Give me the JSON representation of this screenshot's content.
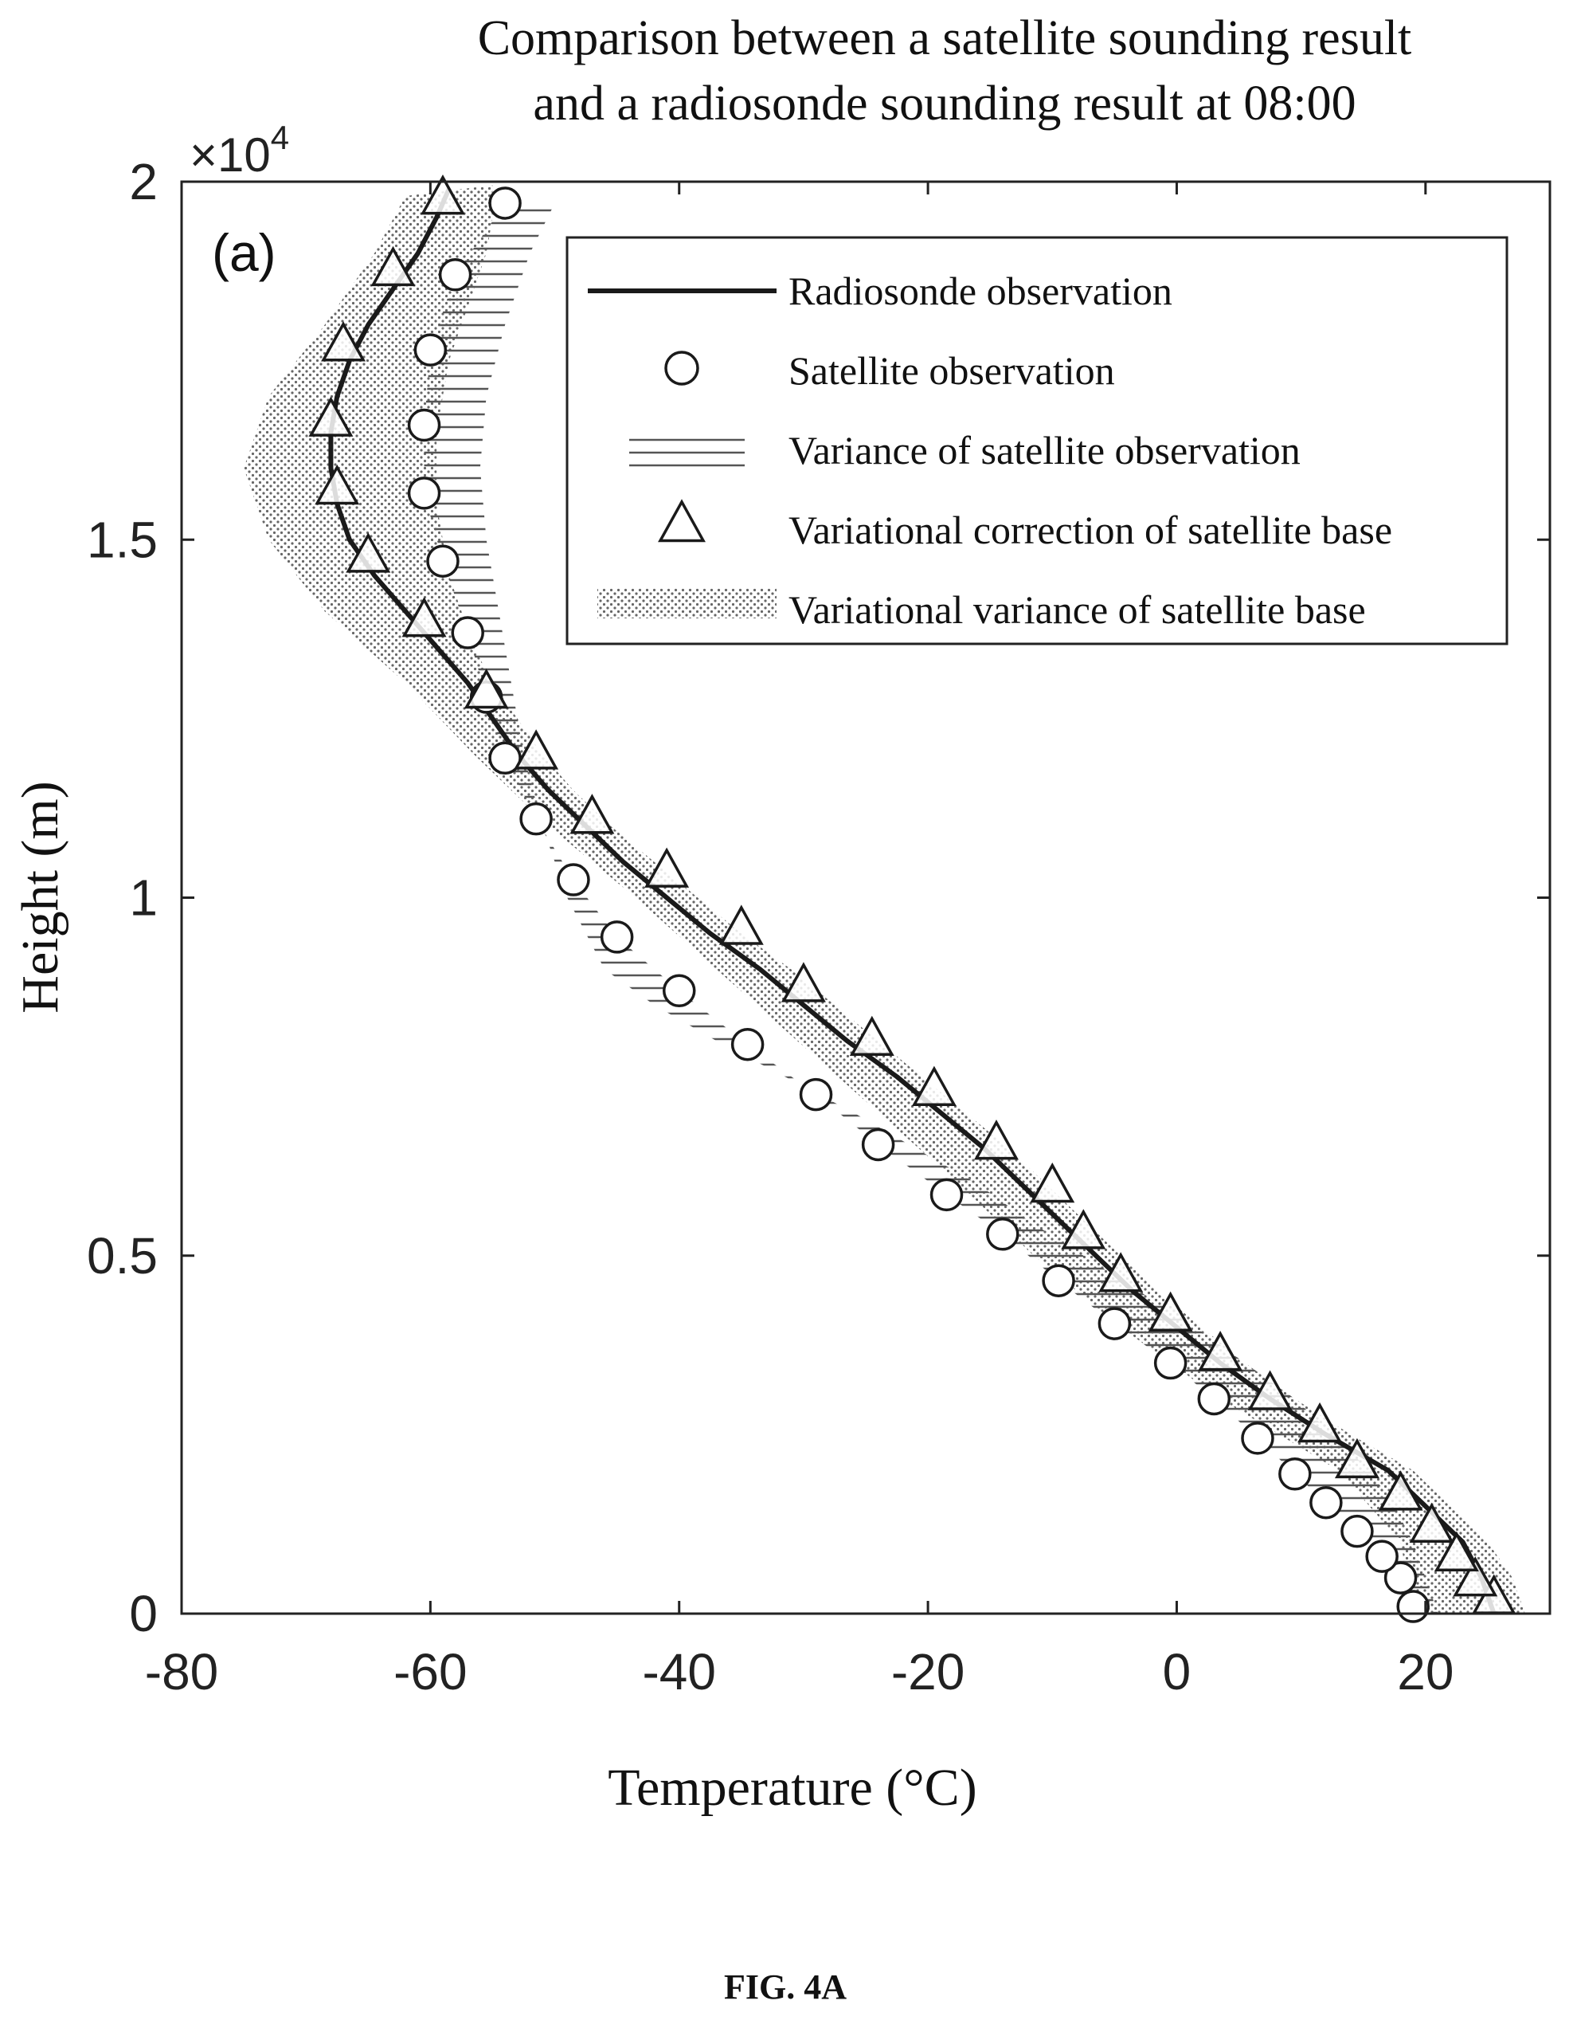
{
  "figure_label": "FIG. 4A",
  "chart_data": {
    "type": "line",
    "title_lines": [
      "Comparison between a satellite sounding result",
      "and a radiosonde sounding result at 08:00"
    ],
    "panel_label": "(a)",
    "xlabel": "Temperature (°C)",
    "ylabel": "Height (m)",
    "y_multiplier": "×10",
    "y_multiplier_exp": "4",
    "xlim": [
      -80,
      30
    ],
    "ylim": [
      0,
      20000
    ],
    "xticks": [
      -80,
      -60,
      -40,
      -20,
      0,
      20
    ],
    "xtick_labels": [
      "-80",
      "-60",
      "-40",
      "-20",
      "0",
      "20"
    ],
    "yticks": [
      0,
      5000,
      10000,
      15000,
      20000
    ],
    "ytick_labels": [
      "0",
      "0.5",
      "1",
      "1.5",
      "2"
    ],
    "grid": false,
    "legend_position": "top-right",
    "series": [
      {
        "name": "Radiosonde observation",
        "style": "line",
        "points": [
          [
            25.5,
            0
          ],
          [
            24.5,
            500
          ],
          [
            23.0,
            1000
          ],
          [
            20.0,
            1500
          ],
          [
            17.0,
            2000
          ],
          [
            12.0,
            2500
          ],
          [
            7.5,
            3000
          ],
          [
            3.5,
            3500
          ],
          [
            0.0,
            4000
          ],
          [
            -3.5,
            4500
          ],
          [
            -6.5,
            5000
          ],
          [
            -9.5,
            5500
          ],
          [
            -12.5,
            6000
          ],
          [
            -15.5,
            6500
          ],
          [
            -19.0,
            7000
          ],
          [
            -22.5,
            7500
          ],
          [
            -26.5,
            8000
          ],
          [
            -30.0,
            8500
          ],
          [
            -33.5,
            9000
          ],
          [
            -37.5,
            9500
          ],
          [
            -41.0,
            10000
          ],
          [
            -44.5,
            10500
          ],
          [
            -47.5,
            11000
          ],
          [
            -50.5,
            11500
          ],
          [
            -53.0,
            12000
          ],
          [
            -55.0,
            12500
          ],
          [
            -57.0,
            13000
          ],
          [
            -59.5,
            13500
          ],
          [
            -62.0,
            14000
          ],
          [
            -64.5,
            14500
          ],
          [
            -66.5,
            15000
          ],
          [
            -67.5,
            15500
          ],
          [
            -68.0,
            16000
          ],
          [
            -68.0,
            16500
          ],
          [
            -67.5,
            17000
          ],
          [
            -66.5,
            17500
          ],
          [
            -65.0,
            18000
          ],
          [
            -63.0,
            18500
          ],
          [
            -61.0,
            19000
          ],
          [
            -59.5,
            19500
          ],
          [
            -58.5,
            19900
          ]
        ]
      },
      {
        "name": "Satellite observation",
        "style": "circle",
        "points": [
          [
            19.0,
            100
          ],
          [
            18.0,
            500
          ],
          [
            16.5,
            800
          ],
          [
            14.5,
            1150
          ],
          [
            12.0,
            1550
          ],
          [
            9.5,
            1950
          ],
          [
            6.5,
            2450
          ],
          [
            3.0,
            3000
          ],
          [
            -0.5,
            3500
          ],
          [
            -5.0,
            4050
          ],
          [
            -9.5,
            4650
          ],
          [
            -14.0,
            5300
          ],
          [
            -18.5,
            5850
          ],
          [
            -24.0,
            6550
          ],
          [
            -29.0,
            7250
          ],
          [
            -34.5,
            7950
          ],
          [
            -40.0,
            8700
          ],
          [
            -45.0,
            9450
          ],
          [
            -48.5,
            10250
          ],
          [
            -51.5,
            11100
          ],
          [
            -54.0,
            11950
          ],
          [
            -55.5,
            12800
          ],
          [
            -57.0,
            13700
          ],
          [
            -59.0,
            14700
          ],
          [
            -60.5,
            15650
          ],
          [
            -60.5,
            16600
          ],
          [
            -60.0,
            17650
          ],
          [
            -58.0,
            18700
          ],
          [
            -54.0,
            19700
          ]
        ]
      },
      {
        "name": "Variance of satellite observation",
        "style": "hatch-band",
        "points": [
          [
            21.0,
            0
          ],
          [
            20.0,
            500
          ],
          [
            19.0,
            1000
          ],
          [
            17.5,
            1500
          ],
          [
            15.5,
            2000
          ],
          [
            12.5,
            2500
          ],
          [
            9.5,
            3000
          ],
          [
            5.5,
            3500
          ],
          [
            1.5,
            4000
          ],
          [
            -3.0,
            4500
          ],
          [
            -7.5,
            5000
          ],
          [
            -12.0,
            5500
          ],
          [
            -16.0,
            6000
          ],
          [
            -21.0,
            6500
          ],
          [
            -26.0,
            7000
          ],
          [
            -31.5,
            7500
          ],
          [
            -37.0,
            8000
          ],
          [
            -42.0,
            8500
          ],
          [
            -46.0,
            9000
          ],
          [
            -49.0,
            10000
          ],
          [
            -51.0,
            11000
          ],
          [
            -52.5,
            12000
          ],
          [
            -53.5,
            13000
          ],
          [
            -54.5,
            14000
          ],
          [
            -55.5,
            15000
          ],
          [
            -56.0,
            16000
          ],
          [
            -55.5,
            17000
          ],
          [
            -54.0,
            18000
          ],
          [
            -52.0,
            19000
          ],
          [
            -50.0,
            19700
          ]
        ]
      },
      {
        "name": "Variational correction of satellite base",
        "style": "triangle",
        "points": [
          [
            25.5,
            200
          ],
          [
            24.0,
            450
          ],
          [
            22.5,
            800
          ],
          [
            20.5,
            1200
          ],
          [
            18.0,
            1650
          ],
          [
            14.5,
            2100
          ],
          [
            11.5,
            2600
          ],
          [
            7.5,
            3050
          ],
          [
            3.5,
            3600
          ],
          [
            -0.5,
            4150
          ],
          [
            -4.5,
            4700
          ],
          [
            -7.5,
            5300
          ],
          [
            -10.0,
            5950
          ],
          [
            -14.5,
            6550
          ],
          [
            -19.5,
            7300
          ],
          [
            -24.5,
            8000
          ],
          [
            -30.0,
            8750
          ],
          [
            -35.0,
            9550
          ],
          [
            -41.0,
            10350
          ],
          [
            -47.0,
            11100
          ],
          [
            -51.5,
            12000
          ],
          [
            -55.5,
            12850
          ],
          [
            -60.5,
            13850
          ],
          [
            -65.0,
            14750
          ],
          [
            -67.5,
            15700
          ],
          [
            -68.0,
            16650
          ],
          [
            -67.0,
            17700
          ],
          [
            -63.0,
            18750
          ],
          [
            -59.0,
            19750
          ]
        ]
      },
      {
        "name": "Variational variance of satellite base",
        "style": "dot-band",
        "left": [
          [
            19.0,
            0
          ],
          [
            18.0,
            1000
          ],
          [
            13.0,
            2000
          ],
          [
            3.5,
            3000
          ],
          [
            -4.5,
            4000
          ],
          [
            -11.5,
            5000
          ],
          [
            -17.5,
            6000
          ],
          [
            -24.0,
            7000
          ],
          [
            -30.5,
            8000
          ],
          [
            -37.0,
            9000
          ],
          [
            -43.5,
            10000
          ],
          [
            -50.5,
            11000
          ],
          [
            -56.5,
            12000
          ],
          [
            -62.0,
            13000
          ],
          [
            -68.5,
            14000
          ],
          [
            -73.0,
            15000
          ],
          [
            -75.0,
            16000
          ],
          [
            -73.0,
            17000
          ],
          [
            -68.5,
            18000
          ],
          [
            -64.5,
            19000
          ],
          [
            -62.0,
            19800
          ]
        ],
        "right": [
          [
            28.0,
            0
          ],
          [
            27.0,
            500
          ],
          [
            25.0,
            1000
          ],
          [
            22.0,
            1500
          ],
          [
            19.0,
            2000
          ],
          [
            14.0,
            2500
          ],
          [
            9.5,
            3000
          ],
          [
            5.5,
            3500
          ],
          [
            2.0,
            4000
          ],
          [
            -1.5,
            4500
          ],
          [
            -4.5,
            5000
          ],
          [
            -7.5,
            5500
          ],
          [
            -10.5,
            6000
          ],
          [
            -13.5,
            6500
          ],
          [
            -17.0,
            7000
          ],
          [
            -20.5,
            7500
          ],
          [
            -24.0,
            8000
          ],
          [
            -27.5,
            8500
          ],
          [
            -31.0,
            9000
          ],
          [
            -35.0,
            9500
          ],
          [
            -38.5,
            10000
          ],
          [
            -42.0,
            10500
          ],
          [
            -45.5,
            11000
          ],
          [
            -48.5,
            11500
          ],
          [
            -51.0,
            12000
          ],
          [
            -53.0,
            12500
          ],
          [
            -55.0,
            13000
          ],
          [
            -56.5,
            13500
          ],
          [
            -57.5,
            14000
          ],
          [
            -58.5,
            14500
          ],
          [
            -59.0,
            15000
          ],
          [
            -59.5,
            15500
          ],
          [
            -59.5,
            16000
          ],
          [
            -59.5,
            16500
          ],
          [
            -59.0,
            17000
          ],
          [
            -58.5,
            17500
          ],
          [
            -57.5,
            18000
          ],
          [
            -56.5,
            18500
          ],
          [
            -55.5,
            19000
          ],
          [
            -55.0,
            19500
          ],
          [
            -55.0,
            19950
          ]
        ]
      }
    ]
  }
}
